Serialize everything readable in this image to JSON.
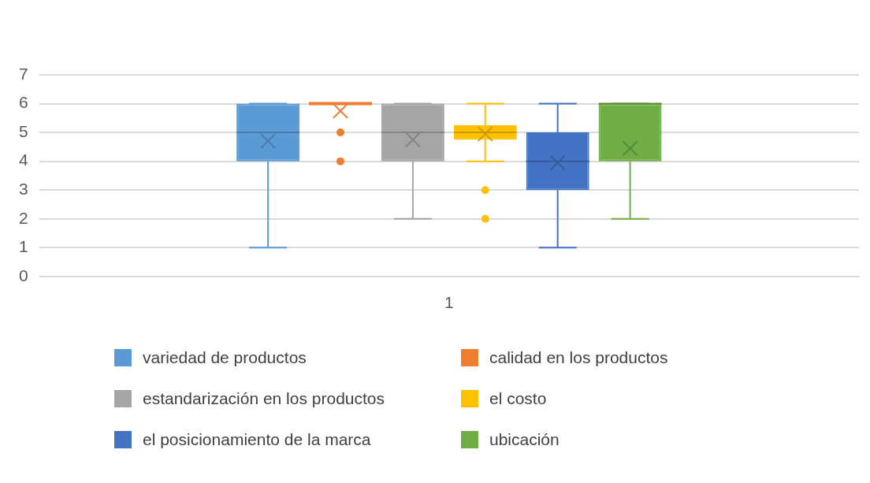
{
  "chart_data": {
    "type": "box",
    "categories": [
      "1"
    ],
    "ylim": [
      0,
      7
    ],
    "yticks": [
      0,
      1,
      2,
      3,
      4,
      5,
      6,
      7
    ],
    "grid": "y",
    "legend": "bottom",
    "series": [
      {
        "name": "variedad de productos",
        "color": "#5b9bd5",
        "boxes": [
          {
            "low": 1,
            "q1": 4,
            "median": 5,
            "q3": 6,
            "high": 6,
            "mean": 4.7
          }
        ]
      },
      {
        "name": "calidad en los productos",
        "color": "#ed7d31",
        "boxes": [
          {
            "low": 6,
            "q1": 6,
            "median": 6,
            "q3": 6,
            "high": 6,
            "mean": 5.75,
            "outliers": [
              5,
              4
            ]
          }
        ]
      },
      {
        "name": "estandarización en los productos",
        "color": "#a5a5a5",
        "boxes": [
          {
            "low": 2,
            "q1": 4,
            "median": 5,
            "q3": 6,
            "high": 6,
            "mean": 4.75
          }
        ]
      },
      {
        "name": "el costo",
        "color": "#ffc000",
        "boxes": [
          {
            "low": 4,
            "q1": 4.75,
            "median": 5,
            "q3": 5.25,
            "high": 6,
            "mean": 4.95,
            "outliers": [
              3,
              2
            ]
          }
        ]
      },
      {
        "name": "el posicionamiento de la marca",
        "color": "#4472c4",
        "boxes": [
          {
            "low": 1,
            "q1": 3,
            "median": 4,
            "q3": 5,
            "high": 6,
            "mean": 3.95
          }
        ]
      },
      {
        "name": "ubicación",
        "color": "#70ad47",
        "boxes": [
          {
            "low": 2,
            "q1": 4,
            "median": 6,
            "q3": 6,
            "high": 6,
            "mean": 4.45
          }
        ]
      }
    ]
  }
}
